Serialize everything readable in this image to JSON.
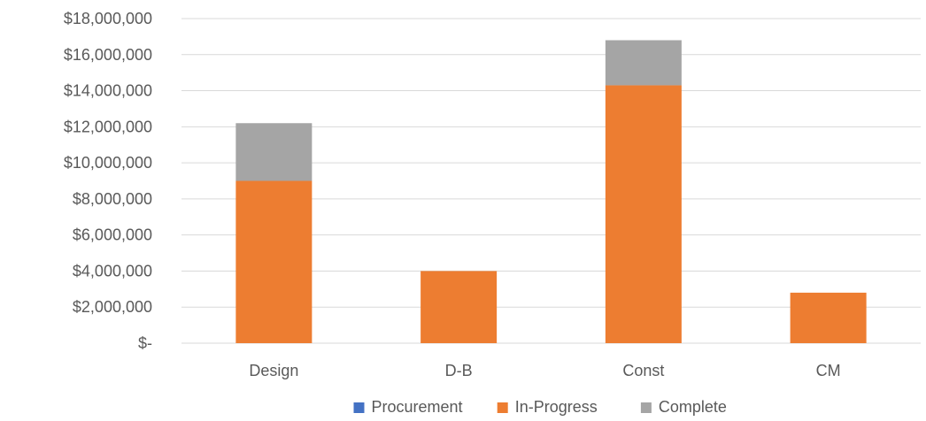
{
  "chart_data": {
    "type": "bar",
    "stacked": true,
    "categories": [
      "Design",
      "D-B",
      "Const",
      "CM"
    ],
    "series": [
      {
        "name": "Procurement",
        "values": [
          0,
          0,
          0,
          0
        ]
      },
      {
        "name": "In-Progress",
        "values": [
          9000000,
          4000000,
          14300000,
          2800000
        ]
      },
      {
        "name": "Complete",
        "values": [
          3200000,
          0,
          2500000,
          0
        ]
      }
    ],
    "ylim": [
      0,
      18000000
    ],
    "yticks": [
      0,
      2000000,
      4000000,
      6000000,
      8000000,
      10000000,
      12000000,
      14000000,
      16000000,
      18000000
    ],
    "ytick_labels": [
      "$-",
      "$2,000,000",
      "$4,000,000",
      "$6,000,000",
      "$8,000,000",
      "$10,000,000",
      "$12,000,000",
      "$14,000,000",
      "$16,000,000",
      "$18,000,000"
    ],
    "title": "",
    "xlabel": "",
    "ylabel": "",
    "grid": true,
    "legend_position": "bottom",
    "colors": {
      "Procurement": "#4472c4",
      "In-Progress": "#ed7d31",
      "Complete": "#a5a5a5",
      "grid": "#d9d9d9",
      "text": "#595959"
    }
  }
}
